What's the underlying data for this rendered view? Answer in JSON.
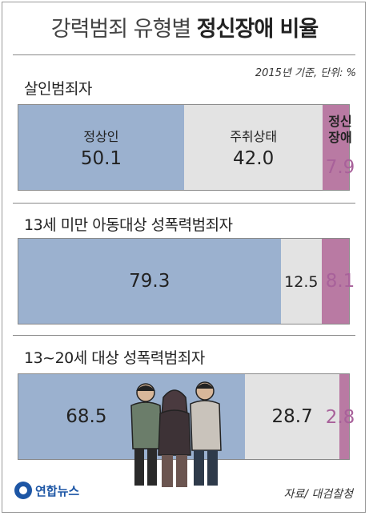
{
  "title": {
    "main": "강력범죄 유형별",
    "emphasis": "정신장애 비율"
  },
  "note": "2015년 기준, 단위: %",
  "legend": {
    "normal": "정상인",
    "drunk": "주취상태",
    "mental": "정신\n장애"
  },
  "source": "자료/ 대검찰청",
  "logo": "연합뉴스",
  "colors": {
    "normal": "#9bb1cf",
    "drunk": "#e3e3e3",
    "mental": "#b97aa3",
    "mental_text": "#a8619a"
  },
  "rows": [
    {
      "label": "살인범죄자",
      "normal": "50.1",
      "drunk": "42.0",
      "mental": "7.9"
    },
    {
      "label": "13세 미만 아동대상 성폭력범죄자",
      "normal": "79.3",
      "drunk": "12.5",
      "mental": "8.1"
    },
    {
      "label": "13~20세 대상 성폭력범죄자",
      "normal": "68.5",
      "drunk": "28.7",
      "mental": "2.8"
    }
  ],
  "chart_data": {
    "type": "bar",
    "stacked": true,
    "orientation": "horizontal",
    "title": "강력범죄 유형별 정신장애 비율",
    "categories": [
      "살인범죄자",
      "13세 미만 아동대상 성폭력범죄자",
      "13~20세 대상 성폭력범죄자"
    ],
    "series": [
      {
        "name": "정상인",
        "values": [
          50.1,
          79.3,
          68.5
        ]
      },
      {
        "name": "주취상태",
        "values": [
          42.0,
          12.5,
          28.7
        ]
      },
      {
        "name": "정신장애",
        "values": [
          7.9,
          8.1,
          2.8
        ]
      }
    ]
  }
}
